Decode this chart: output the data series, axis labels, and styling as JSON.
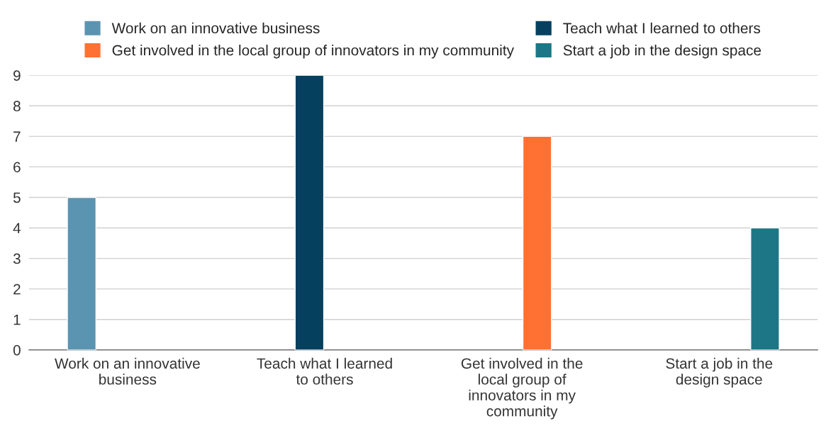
{
  "chart_data": {
    "type": "bar",
    "categories": [
      "Work on an innovative business",
      "Teach what I learned to others",
      "Get involved in the local group of innovators in my community",
      "Start a job in the design space"
    ],
    "series": [
      {
        "name": "Work on an innovative business",
        "color": "#5b94b1",
        "values": [
          5,
          null,
          null,
          null
        ]
      },
      {
        "name": "Teach what I learned to others",
        "color": "#05405f",
        "values": [
          null,
          9,
          null,
          null
        ]
      },
      {
        "name": "Get involved in the local group of innovators in my community",
        "color": "#ff7033",
        "values": [
          null,
          null,
          7,
          null
        ]
      },
      {
        "name": "Start a job in the design space",
        "color": "#1d7685",
        "values": [
          null,
          null,
          null,
          4
        ]
      }
    ],
    "ylim": [
      0,
      9
    ],
    "yticks": [
      0,
      1,
      2,
      3,
      4,
      5,
      6,
      7,
      8,
      9
    ],
    "grid": "y",
    "legend": "top"
  }
}
